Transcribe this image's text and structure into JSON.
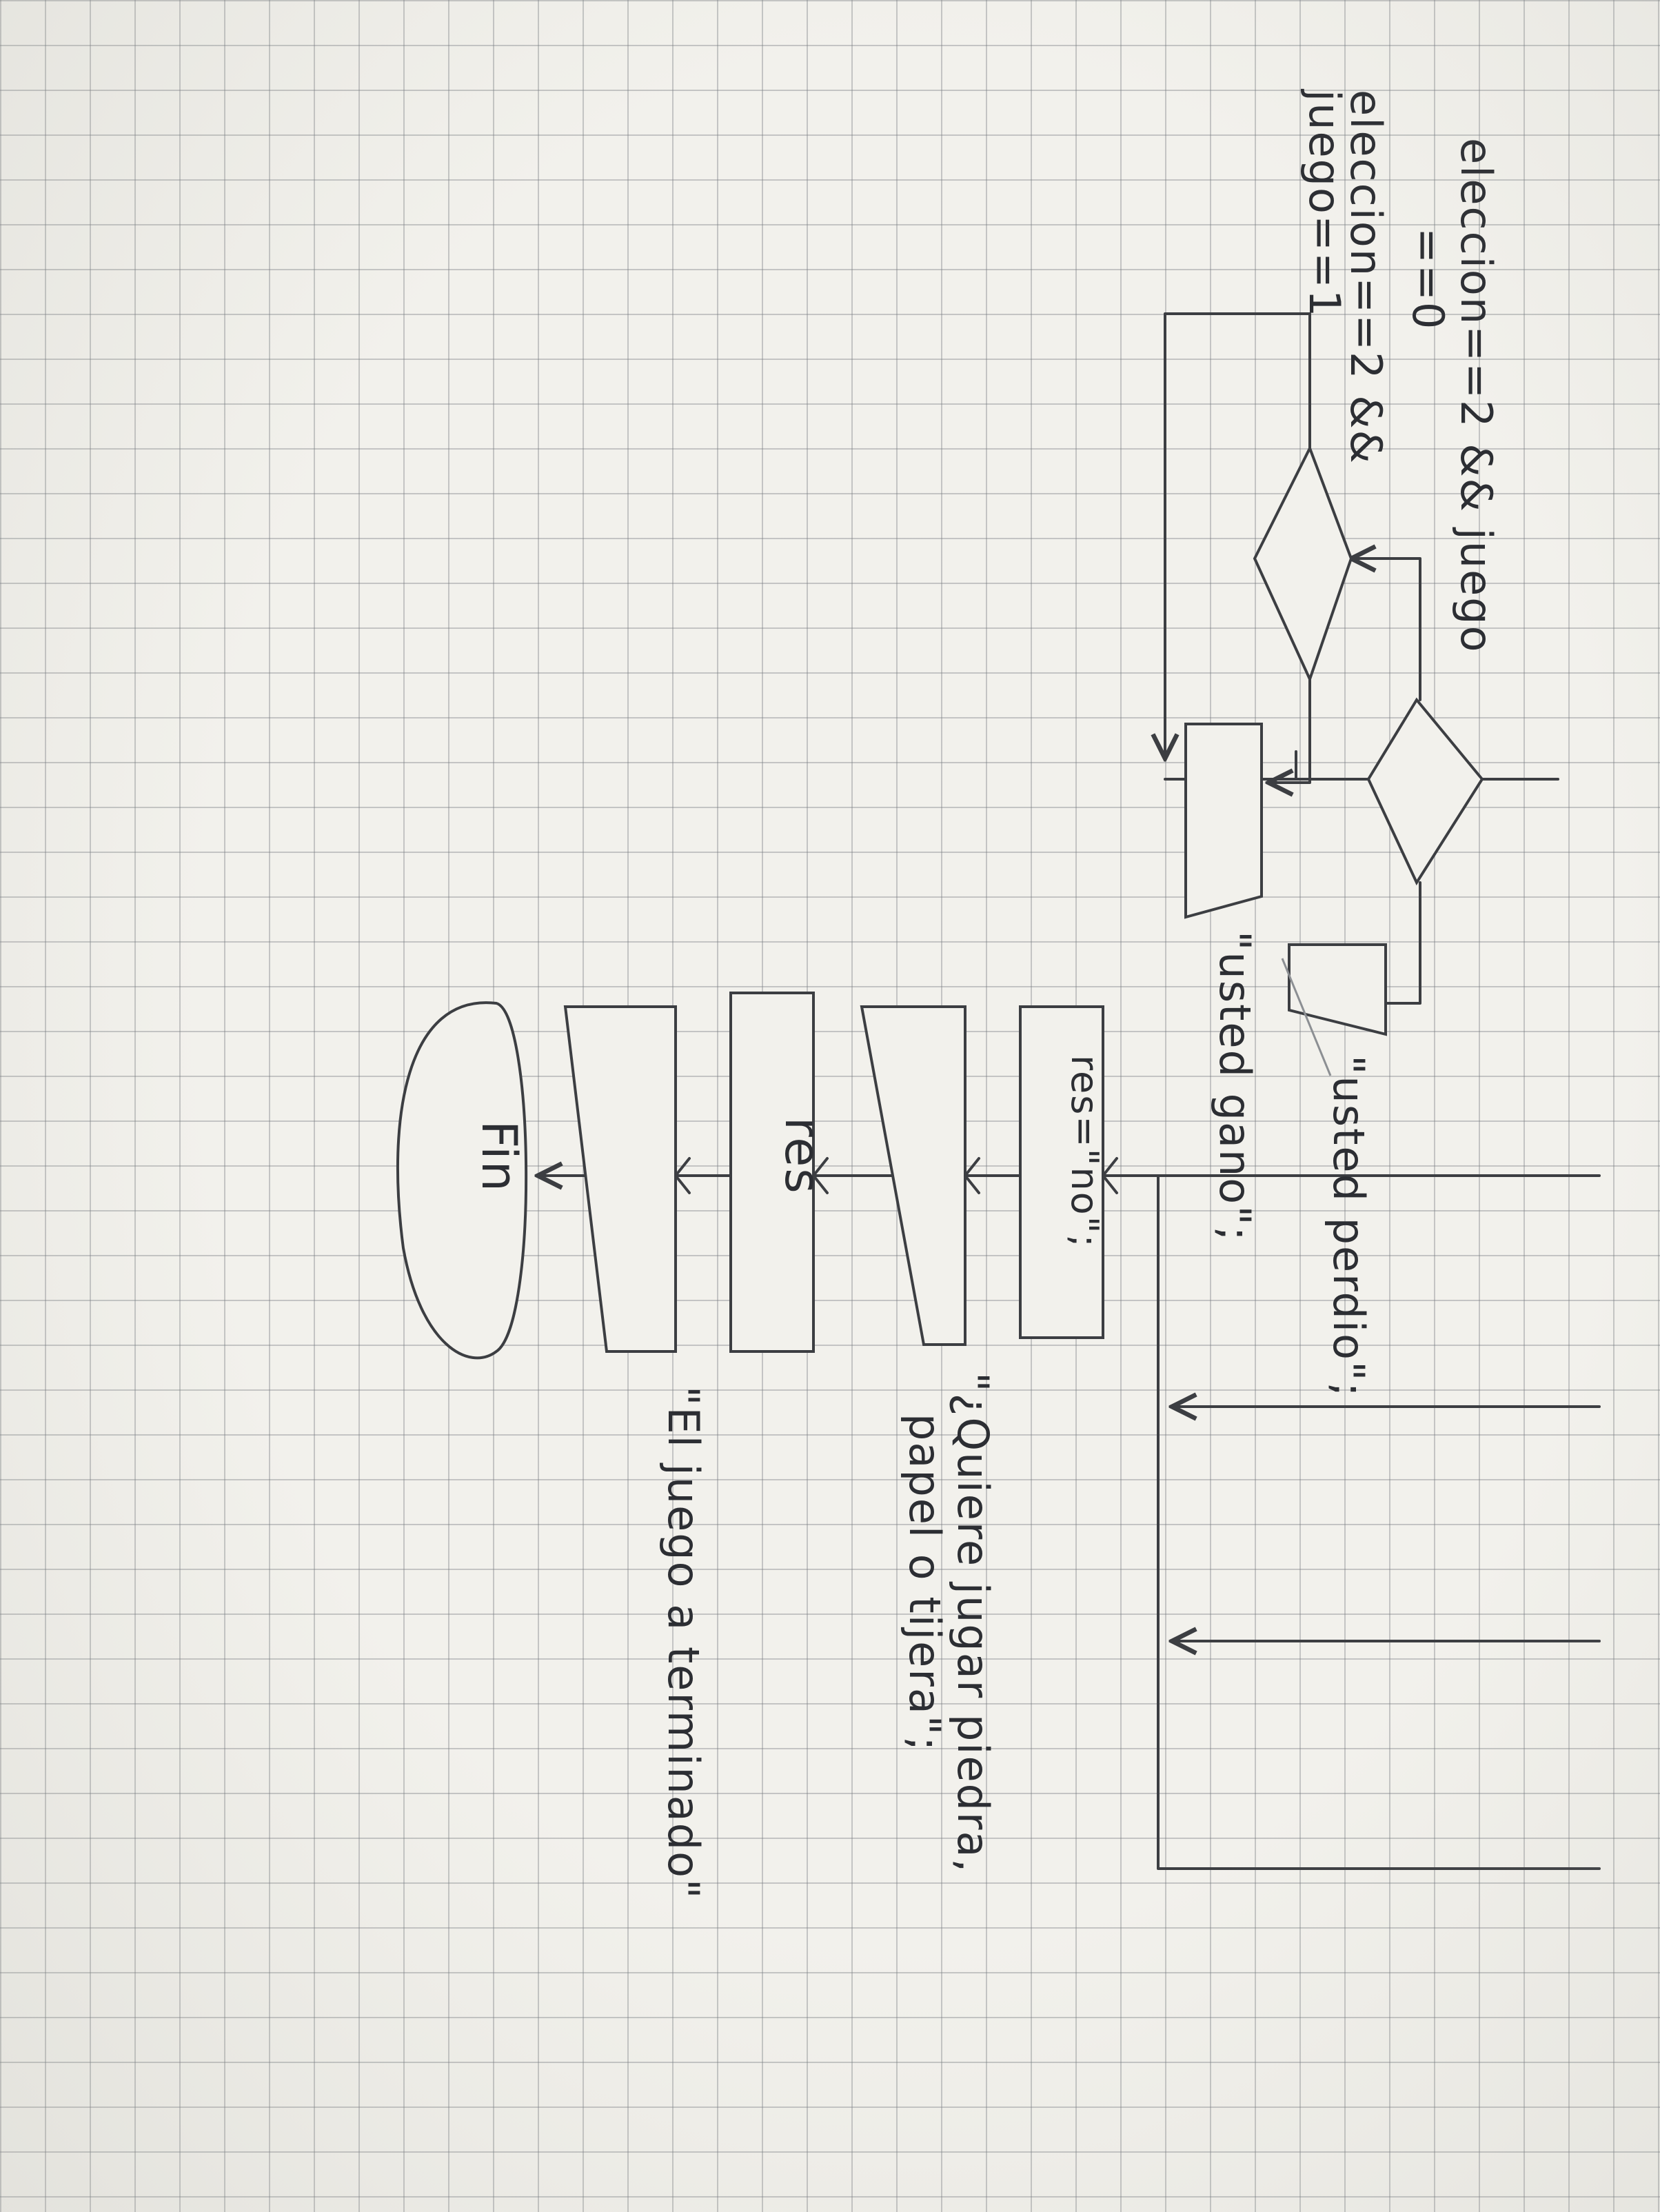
{
  "diagram": {
    "conditions": {
      "top_line1": "eleccion==2 && juego",
      "top_line2": "==0",
      "bottom_line1": "eleccion==2 &&",
      "bottom_line2": "juego==1"
    },
    "outputs": {
      "perdio": "\"usted perdio\";",
      "gano": "\"usted gano\";",
      "pregunta_line1": "\"¿Quiere jugar piedra,",
      "pregunta_line2": "papel o tijera\";",
      "fin_mensaje": "\"El juego a terminado\""
    },
    "assignments": {
      "res_no": "res=\"no\";",
      "res": "res"
    },
    "terminal": {
      "end": "Fin"
    }
  },
  "colors": {
    "paper": "#f2f1ec",
    "grid": "#7d8287",
    "ink": "#3c3e42"
  }
}
